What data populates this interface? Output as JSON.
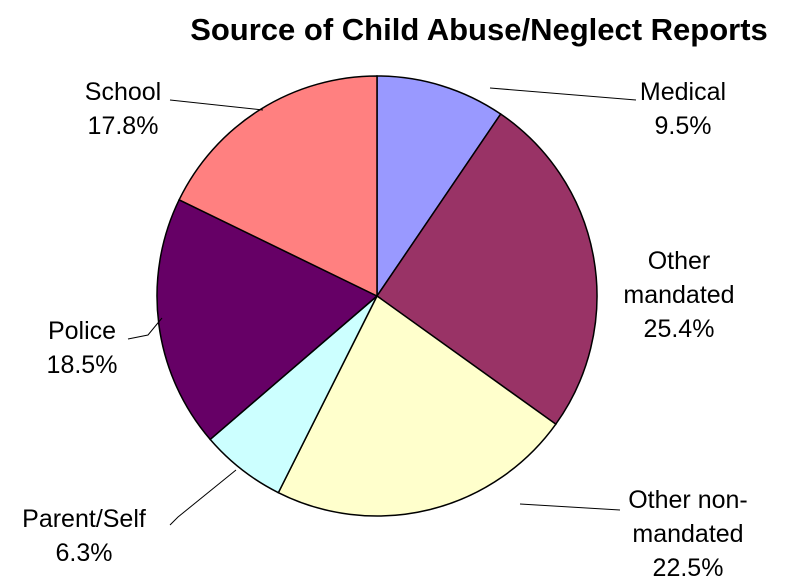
{
  "chart_data": {
    "type": "pie",
    "title": "Source of Child Abuse/Neglect Reports",
    "start_angle": "12 o'clock",
    "direction": "clockwise",
    "slices": [
      {
        "label_lines": [
          "Medical"
        ],
        "value": 9.5,
        "value_text": "9.5%",
        "color": "#9999ff"
      },
      {
        "label_lines": [
          "Other",
          "mandated"
        ],
        "value": 25.4,
        "value_text": "25.4%",
        "color": "#993366"
      },
      {
        "label_lines": [
          "Other non-",
          "mandated"
        ],
        "value": 22.5,
        "value_text": "22.5%",
        "color": "#ffffcc"
      },
      {
        "label_lines": [
          "Parent/Self"
        ],
        "value": 6.3,
        "value_text": "6.3%",
        "color": "#ccffff"
      },
      {
        "label_lines": [
          "Police"
        ],
        "value": 18.5,
        "value_text": "18.5%",
        "color": "#660066"
      },
      {
        "label_lines": [
          "School"
        ],
        "value": 17.8,
        "value_text": "17.8%",
        "color": "#ff8080"
      }
    ]
  }
}
